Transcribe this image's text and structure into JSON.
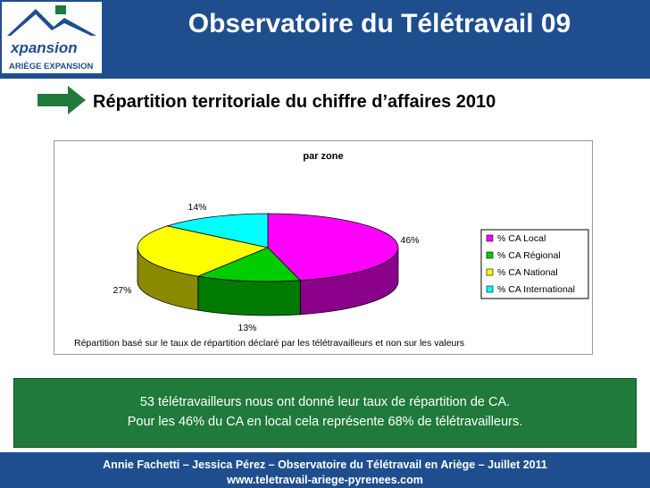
{
  "header": {
    "title": "Observatoire du Télétravail 09",
    "logo_word": "xpansion",
    "logo_sub": "ARIÈGE EXPANSION"
  },
  "subtitle": "Répartition territoriale du chiffre d’affaires 2010",
  "chart_data": {
    "type": "pie",
    "title": "par zone",
    "categories": [
      "% CA Local",
      "% CA Régional",
      "% CA National",
      "% CA International"
    ],
    "values": [
      46,
      13,
      27,
      14
    ],
    "data_labels": [
      "46%",
      "13%",
      "27%",
      "14%"
    ],
    "colors": [
      "#ff00ff",
      "#00cc00",
      "#ffff00",
      "#00ffff"
    ],
    "shadow_colors": [
      "#8a008a",
      "#007a00",
      "#8a8a00",
      "#008a8a"
    ],
    "legend_position": "right",
    "note": "Répartition basé sur le taux de répartition déclaré par les télétravailleurs et non sur les valeurs"
  },
  "info": {
    "line1": "53 télétravailleurs nous ont donné leur taux de répartition de CA.",
    "line2": "Pour les 46% du CA en local cela représente 68% de télétravailleurs."
  },
  "footer": {
    "line1": "Annie Fachetti – Jessica Pérez – Observatoire du Télétravail en Ariège – Juillet 2011",
    "line2": "www.teletravail-ariege-pyrenees.com"
  }
}
